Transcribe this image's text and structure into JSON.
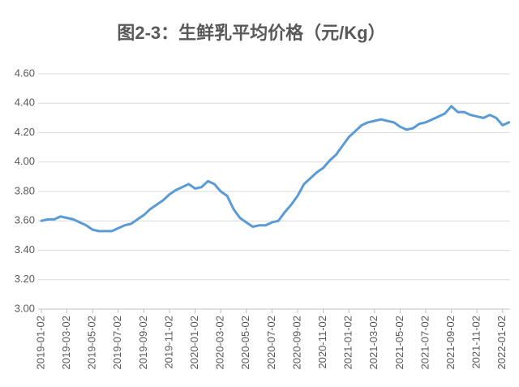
{
  "chart_data": {
    "type": "line",
    "title": "图2-3：生鲜乳平均价格（元/Kg）",
    "categories": [
      "2019-01-02",
      null,
      null,
      null,
      "2019-03-02",
      null,
      null,
      null,
      "2019-05-02",
      null,
      null,
      null,
      "2019-07-02",
      null,
      null,
      null,
      "2019-09-02",
      null,
      null,
      null,
      "2019-11-02",
      null,
      null,
      null,
      "2020-01-02",
      null,
      null,
      null,
      "2020-03-02",
      null,
      null,
      null,
      "2020-05-02",
      null,
      null,
      null,
      "2020-07-02",
      null,
      null,
      null,
      "2020-09-02",
      null,
      null,
      null,
      "2020-11-02",
      null,
      null,
      null,
      "2021-01-02",
      null,
      null,
      null,
      "2021-03-02",
      null,
      null,
      null,
      "2021-05-02",
      null,
      null,
      null,
      "2021-07-02",
      null,
      null,
      null,
      "2021-09-02",
      null,
      null,
      null,
      "2021-11-02",
      null,
      null,
      null,
      "2022-01-02",
      null
    ],
    "series": [
      {
        "color": "#5b9bd5",
        "values": [
          3.6,
          3.61,
          3.61,
          3.63,
          3.62,
          3.61,
          3.59,
          3.57,
          3.54,
          3.53,
          3.53,
          3.53,
          3.55,
          3.57,
          3.58,
          3.61,
          3.64,
          3.68,
          3.71,
          3.74,
          3.78,
          3.81,
          3.83,
          3.85,
          3.82,
          3.83,
          3.87,
          3.85,
          3.8,
          3.77,
          3.68,
          3.62,
          3.59,
          3.56,
          3.57,
          3.57,
          3.59,
          3.6,
          3.66,
          3.71,
          3.77,
          3.85,
          3.89,
          3.93,
          3.96,
          4.01,
          4.05,
          4.11,
          4.17,
          4.21,
          4.25,
          4.27,
          4.28,
          4.29,
          4.28,
          4.27,
          4.24,
          4.22,
          4.23,
          4.26,
          4.27,
          4.29,
          4.31,
          4.33,
          4.38,
          4.34,
          4.34,
          4.32,
          4.31,
          4.3,
          4.32,
          4.3,
          4.25,
          4.27
        ]
      }
    ],
    "ylim": [
      3.0,
      4.6
    ],
    "yticks": [
      {
        "value": 3.0,
        "label": "3.00"
      },
      {
        "value": 3.2,
        "label": "3.20"
      },
      {
        "value": 3.4,
        "label": "3.40"
      },
      {
        "value": 3.6,
        "label": "3.60"
      },
      {
        "value": 3.8,
        "label": "3.80"
      },
      {
        "value": 4.0,
        "label": "4.00"
      },
      {
        "value": 4.2,
        "label": "4.20"
      },
      {
        "value": 4.4,
        "label": "4.40"
      },
      {
        "value": 4.6,
        "label": "4.60"
      }
    ],
    "grid": true
  }
}
